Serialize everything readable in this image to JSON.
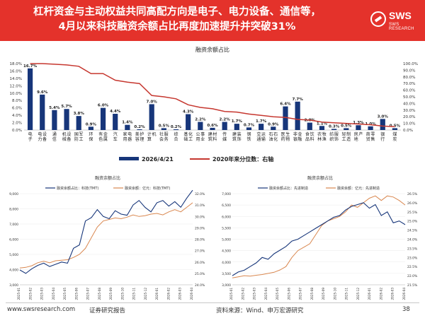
{
  "header": {
    "title_line1": "杠杆资金与主动权益共同高配方向是电子、电力设备、通信等，",
    "title_line2": "4月以来科技融资余额占比再度加速提升并突破31%",
    "logo_text": "SWS",
    "logo_sub": "SWS RESEARCH",
    "bg_color": "#e4322b"
  },
  "footer": {
    "url": "www.swsresearch.com",
    "report": "证券研究报告",
    "source": "资料来源：Wind、申万宏源研究",
    "page": "38"
  },
  "colors": {
    "bar": "#17367a",
    "line_red": "#c6372f",
    "line_blue": "#17367a",
    "line_orange": "#d9874f"
  },
  "chart_data": [
    {
      "type": "bar",
      "title": "融资余额占比",
      "categories": [
        "电子",
        "电力设备",
        "通信",
        "机械设备",
        "国防军工",
        "环保",
        "有色金属",
        "汽车",
        "家用电器",
        "美容护理",
        "计算机",
        "社会服务",
        "综合",
        "基础化工",
        "公用事业",
        "建筑材料",
        "传媒",
        "建筑装饰",
        "钢铁",
        "交通运输",
        "石油石化",
        "医药生物",
        "非银金融",
        "食品饮料",
        "农林牧渔",
        "纺织服饰",
        "轻工制造",
        "房地产",
        "商贸零售",
        "银行",
        "煤炭"
      ],
      "series": [
        {
          "name": "2026/4/21",
          "axis": "left",
          "values": [
            16.7,
            9.6,
            5.4,
            5.7,
            3.8,
            0.9,
            6.0,
            4.4,
            1.4,
            0.2,
            7.0,
            0.5,
            0.2,
            4.3,
            2.2,
            0.6,
            2.2,
            1.7,
            0.7,
            1.7,
            0.9,
            6.4,
            7.7,
            2.0,
            1.1,
            0.3,
            0.5,
            1.3,
            1.0,
            3.0,
            0.5
          ]
        },
        {
          "name": "2020年来分位数：右轴",
          "axis": "right",
          "values": [
            100,
            100,
            99,
            98,
            96,
            85,
            85,
            75,
            72,
            70,
            52,
            50,
            47,
            38,
            34,
            32,
            28,
            27,
            24,
            22,
            20,
            19,
            16,
            15,
            12,
            11,
            10,
            9,
            8,
            6,
            5
          ]
        }
      ],
      "data_labels": [
        "16.7%",
        "9.6%",
        "5.4%",
        "5.7%",
        "3.8%",
        "0.9%",
        "6.0%",
        "4.4%",
        "1.4%",
        "0.2%",
        "7.0%",
        "0.5%",
        "0.2%",
        "4.3%",
        "2.2%",
        "0.6%",
        "2.2%",
        "1.7%",
        "0.7%",
        "1.7%",
        "0.9%",
        "6.4%",
        "7.7%",
        "2.0%",
        "1.1%",
        "0.3%",
        "0.5%",
        "1.3%",
        "1.0%",
        "3.0%",
        "0.5%"
      ],
      "ylim_left": [
        0,
        18
      ],
      "yticks_left": [
        "0.0%",
        "2.0%",
        "4.0%",
        "6.0%",
        "8.0%",
        "10.0%",
        "12.0%",
        "14.0%",
        "16.0%",
        "18.0%"
      ],
      "ylim_right": [
        0,
        100
      ],
      "yticks_right": [
        "0.0%",
        "10.0%",
        "20.0%",
        "30.0%",
        "40.0%",
        "50.0%",
        "60.0%",
        "70.0%",
        "80.0%",
        "90.0%",
        "100.0%"
      ],
      "legend": [
        "2026/4/21",
        "2020年来分位数：右轴"
      ],
      "legend_position": "bottom"
    },
    {
      "type": "line",
      "title": "融资余额占比",
      "x_ticks": [
        "2025-01",
        "2025-02",
        "2025-03",
        "2025-04",
        "2025-05",
        "2025-06",
        "2025-07",
        "2025-08",
        "2025-09",
        "2025-10",
        "2025-11",
        "2025-12",
        "2026-01",
        "2026-02",
        "2026-03",
        "2026-04"
      ],
      "series": [
        {
          "name": "融资余额占比：科技(TMT)",
          "axis": "right",
          "values": [
            25.3,
            25.0,
            25.4,
            25.7,
            25.9,
            25.6,
            25.8,
            26.0,
            25.9,
            27.2,
            27.5,
            29.6,
            29.9,
            30.6,
            30.0,
            29.8,
            30.5,
            30.2,
            30.1,
            31.0,
            31.4,
            30.8,
            30.4,
            31.2,
            31.4,
            30.9,
            31.3,
            30.8,
            31.6,
            32.3
          ]
        },
        {
          "name": "融资余额：亿元：科技(TMT)",
          "axis": "left",
          "values": [
            4100,
            4150,
            4250,
            4450,
            4550,
            4450,
            4580,
            4620,
            4650,
            4800,
            5000,
            5400,
            6100,
            6800,
            7200,
            7300,
            7400,
            7350,
            7450,
            7600,
            7500,
            7550,
            7650,
            7700,
            7600,
            7800,
            7950,
            7800,
            8100,
            8400
          ]
        }
      ],
      "ylim_left": [
        3000,
        9000
      ],
      "yticks_left": [
        "3,000",
        "4,000",
        "5,000",
        "6,000",
        "7,000",
        "8,000",
        "9,000"
      ],
      "ylim_right": [
        24.0,
        32.0
      ],
      "yticks_right": [
        "24.0%",
        "25.0%",
        "26.0%",
        "27.0%",
        "28.0%",
        "29.0%",
        "30.0%",
        "31.0%",
        "32.0%"
      ],
      "legend_position": "top"
    },
    {
      "type": "line",
      "title": "融资余额占比",
      "x_ticks": [
        "2025-01",
        "2025-02",
        "2025-03",
        "2025-04",
        "2025-05",
        "2025-06",
        "2025-07",
        "2025-08",
        "2025-09",
        "2025-10",
        "2025-11",
        "2025-12",
        "2026-01",
        "2026-02",
        "2026-03",
        "2026-04"
      ],
      "series": [
        {
          "name": "融资余额占比：先进制造",
          "axis": "right",
          "values": [
            22.0,
            22.2,
            22.3,
            22.5,
            22.7,
            23.0,
            22.9,
            23.2,
            23.4,
            23.6,
            23.9,
            24.0,
            24.2,
            24.4,
            24.6,
            24.8,
            25.0,
            25.2,
            25.3,
            25.6,
            25.8,
            25.9,
            26.0,
            25.7,
            25.9,
            25.3,
            25.5,
            24.9,
            25.0,
            24.8
          ]
        },
        {
          "name": "融资余额：亿元：先进制造",
          "axis": "left",
          "values": [
            3300,
            3350,
            3400,
            3380,
            3420,
            3450,
            3500,
            3550,
            3650,
            3800,
            4200,
            4500,
            4650,
            4800,
            5200,
            5600,
            5800,
            5900,
            6000,
            6200,
            6500,
            6400,
            6600,
            6800,
            6900,
            6700,
            6900,
            6850,
            6700,
            6500
          ]
        }
      ],
      "ylim_left": [
        3000,
        7000
      ],
      "yticks_left": [
        "3,000",
        "3,500",
        "4,000",
        "4,500",
        "5,000",
        "5,500",
        "6,000",
        "6,500",
        "7,000"
      ],
      "ylim_right": [
        21.5,
        26.5
      ],
      "yticks_right": [
        "21.5%",
        "22.0%",
        "22.5%",
        "23.0%",
        "23.5%",
        "24.0%",
        "24.5%",
        "25.0%",
        "25.5%",
        "26.0%",
        "26.5%"
      ],
      "legend_position": "top"
    }
  ]
}
